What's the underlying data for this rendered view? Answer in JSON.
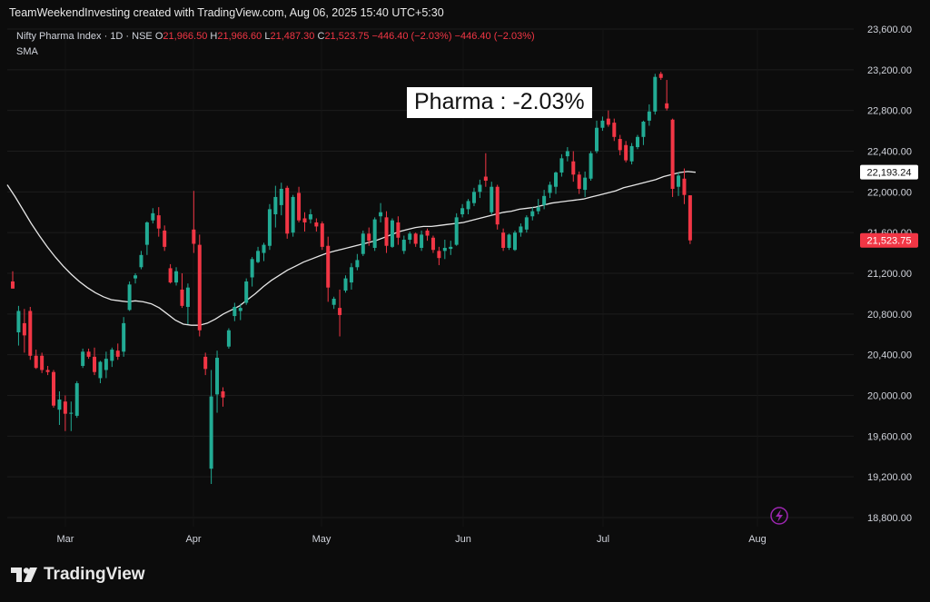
{
  "header": {
    "credit": "TeamWeekendInvesting created with TradingView.com, Aug 06, 2025 15:40 UTC+5:30"
  },
  "legend": {
    "symbol": "Nifty Pharma Index · 1D · NSE",
    "o_label": "O",
    "o_value": "21,966.50",
    "h_label": "H",
    "h_value": "21,966.60",
    "l_label": "L",
    "l_value": "21,487.30",
    "c_label": "C",
    "c_value": "21,523.75",
    "change": "−446.40 (−2.03%)",
    "change_repeat": "−446.40 (−2.03%)",
    "indicator": "SMA"
  },
  "annotation": "Pharma : -2.03%",
  "brand": {
    "name": "TradingView",
    "logo_icon": "tradingview-logo-icon"
  },
  "colors": {
    "background": "#0c0c0c",
    "up": "#22ab94",
    "down": "#f23645",
    "sma": "#e6e6e6",
    "badge_sma_bg": "#ffffff",
    "badge_price_bg": "#f23645",
    "lightning": "#9c27b0"
  },
  "chart_data": {
    "type": "candlestick",
    "x_ticks": [
      "Mar",
      "Apr",
      "May",
      "Jun",
      "Jul",
      "Aug"
    ],
    "y_ticks": [
      18800,
      19200,
      19600,
      20000,
      20400,
      20800,
      21200,
      21600,
      22000,
      22400,
      22800,
      23200,
      23600
    ],
    "y_tick_labels": [
      "18,800.00",
      "19,200.00",
      "19,600.00",
      "20,000.00",
      "20,400.00",
      "20,800.00",
      "21,200.00",
      "21,600.00",
      "22,000.00",
      "22,400.00",
      "22,800.00",
      "23,200.00",
      "23,600.00"
    ],
    "ylim": [
      18700,
      23700
    ],
    "price_badges": [
      {
        "label": "22,193.24",
        "value": 22193.24,
        "kind": "sma"
      },
      {
        "label": "21,523.75",
        "value": 21523.75,
        "kind": "last"
      }
    ],
    "candles": [
      {
        "o": 21120,
        "h": 21220,
        "l": 21050,
        "c": 21050
      },
      {
        "o": 20620,
        "h": 20880,
        "l": 20490,
        "c": 20830
      },
      {
        "o": 20710,
        "h": 20850,
        "l": 20420,
        "c": 20590
      },
      {
        "o": 20830,
        "h": 20870,
        "l": 20350,
        "c": 20390
      },
      {
        "o": 20390,
        "h": 20450,
        "l": 20260,
        "c": 20270
      },
      {
        "o": 20390,
        "h": 20420,
        "l": 20220,
        "c": 20250
      },
      {
        "o": 20250,
        "h": 20290,
        "l": 20200,
        "c": 20230
      },
      {
        "o": 20230,
        "h": 20250,
        "l": 19880,
        "c": 19900
      },
      {
        "o": 19860,
        "h": 20040,
        "l": 19710,
        "c": 19960
      },
      {
        "o": 19940,
        "h": 20000,
        "l": 19650,
        "c": 19820
      },
      {
        "o": 19820,
        "h": 19940,
        "l": 19650,
        "c": 19830
      },
      {
        "o": 19800,
        "h": 20140,
        "l": 19780,
        "c": 20120
      },
      {
        "o": 20290,
        "h": 20460,
        "l": 20270,
        "c": 20430
      },
      {
        "o": 20430,
        "h": 20460,
        "l": 20360,
        "c": 20380
      },
      {
        "o": 20380,
        "h": 20470,
        "l": 20200,
        "c": 20230
      },
      {
        "o": 20170,
        "h": 20340,
        "l": 20120,
        "c": 20330
      },
      {
        "o": 20250,
        "h": 20430,
        "l": 20170,
        "c": 20360
      },
      {
        "o": 20340,
        "h": 20470,
        "l": 20280,
        "c": 20450
      },
      {
        "o": 20440,
        "h": 20510,
        "l": 20350,
        "c": 20380
      },
      {
        "o": 20430,
        "h": 20770,
        "l": 20380,
        "c": 20710
      },
      {
        "o": 20840,
        "h": 21120,
        "l": 20830,
        "c": 21090
      },
      {
        "o": 21150,
        "h": 21200,
        "l": 21100,
        "c": 21180
      },
      {
        "o": 21260,
        "h": 21420,
        "l": 21240,
        "c": 21380
      },
      {
        "o": 21480,
        "h": 21710,
        "l": 21380,
        "c": 21700
      },
      {
        "o": 21720,
        "h": 21840,
        "l": 21690,
        "c": 21790
      },
      {
        "o": 21770,
        "h": 21850,
        "l": 21560,
        "c": 21640
      },
      {
        "o": 21620,
        "h": 21670,
        "l": 21420,
        "c": 21460
      },
      {
        "o": 21250,
        "h": 21290,
        "l": 21100,
        "c": 21110
      },
      {
        "o": 21110,
        "h": 21260,
        "l": 21080,
        "c": 21220
      },
      {
        "o": 21040,
        "h": 21200,
        "l": 20860,
        "c": 20880
      },
      {
        "o": 20870,
        "h": 21100,
        "l": 20700,
        "c": 21060
      },
      {
        "o": 21630,
        "h": 22010,
        "l": 21400,
        "c": 21490
      },
      {
        "o": 21480,
        "h": 21580,
        "l": 20580,
        "c": 20640
      },
      {
        "o": 20380,
        "h": 20420,
        "l": 20200,
        "c": 20260
      },
      {
        "o": 19280,
        "h": 20250,
        "l": 19130,
        "c": 19990
      },
      {
        "o": 20010,
        "h": 20440,
        "l": 19830,
        "c": 20370
      },
      {
        "o": 20040,
        "h": 20080,
        "l": 19890,
        "c": 19980
      },
      {
        "o": 20480,
        "h": 20660,
        "l": 20460,
        "c": 20640
      },
      {
        "o": 20780,
        "h": 20910,
        "l": 20730,
        "c": 20870
      },
      {
        "o": 20830,
        "h": 20900,
        "l": 20740,
        "c": 20860
      },
      {
        "o": 20910,
        "h": 21150,
        "l": 20890,
        "c": 21120
      },
      {
        "o": 21160,
        "h": 21360,
        "l": 21070,
        "c": 21340
      },
      {
        "o": 21310,
        "h": 21460,
        "l": 21300,
        "c": 21420
      },
      {
        "o": 21400,
        "h": 21500,
        "l": 21320,
        "c": 21480
      },
      {
        "o": 21470,
        "h": 21880,
        "l": 21430,
        "c": 21830
      },
      {
        "o": 21780,
        "h": 22060,
        "l": 21650,
        "c": 21950
      },
      {
        "o": 21870,
        "h": 22090,
        "l": 21770,
        "c": 22030
      },
      {
        "o": 22040,
        "h": 22060,
        "l": 21540,
        "c": 21590
      },
      {
        "o": 21600,
        "h": 21970,
        "l": 21560,
        "c": 21950
      },
      {
        "o": 21990,
        "h": 22050,
        "l": 21700,
        "c": 21720
      },
      {
        "o": 21740,
        "h": 21800,
        "l": 21610,
        "c": 21700
      },
      {
        "o": 21730,
        "h": 21830,
        "l": 21690,
        "c": 21780
      },
      {
        "o": 21700,
        "h": 21740,
        "l": 21610,
        "c": 21660
      },
      {
        "o": 21690,
        "h": 21710,
        "l": 21430,
        "c": 21460
      },
      {
        "o": 21470,
        "h": 21560,
        "l": 20920,
        "c": 21060
      },
      {
        "o": 20890,
        "h": 20970,
        "l": 20850,
        "c": 20950
      },
      {
        "o": 20860,
        "h": 21040,
        "l": 20580,
        "c": 20790
      },
      {
        "o": 21030,
        "h": 21180,
        "l": 21010,
        "c": 21150
      },
      {
        "o": 21110,
        "h": 21300,
        "l": 21040,
        "c": 21260
      },
      {
        "o": 21260,
        "h": 21390,
        "l": 21230,
        "c": 21330
      },
      {
        "o": 21390,
        "h": 21620,
        "l": 21370,
        "c": 21590
      },
      {
        "o": 21590,
        "h": 21650,
        "l": 21470,
        "c": 21520
      },
      {
        "o": 21450,
        "h": 21750,
        "l": 21420,
        "c": 21730
      },
      {
        "o": 21760,
        "h": 21890,
        "l": 21700,
        "c": 21800
      },
      {
        "o": 21750,
        "h": 21810,
        "l": 21400,
        "c": 21470
      },
      {
        "o": 21460,
        "h": 21740,
        "l": 21450,
        "c": 21720
      },
      {
        "o": 21700,
        "h": 21760,
        "l": 21480,
        "c": 21550
      },
      {
        "o": 21420,
        "h": 21570,
        "l": 21390,
        "c": 21530
      },
      {
        "o": 21530,
        "h": 21610,
        "l": 21490,
        "c": 21590
      },
      {
        "o": 21590,
        "h": 21600,
        "l": 21460,
        "c": 21490
      },
      {
        "o": 21450,
        "h": 21620,
        "l": 21420,
        "c": 21580
      },
      {
        "o": 21620,
        "h": 21640,
        "l": 21520,
        "c": 21570
      },
      {
        "o": 21550,
        "h": 21570,
        "l": 21400,
        "c": 21430
      },
      {
        "o": 21420,
        "h": 21460,
        "l": 21280,
        "c": 21350
      },
      {
        "o": 21420,
        "h": 21530,
        "l": 21340,
        "c": 21450
      },
      {
        "o": 21440,
        "h": 21520,
        "l": 21380,
        "c": 21460
      },
      {
        "o": 21480,
        "h": 21790,
        "l": 21470,
        "c": 21750
      },
      {
        "o": 21780,
        "h": 21880,
        "l": 21750,
        "c": 21840
      },
      {
        "o": 21830,
        "h": 21930,
        "l": 21780,
        "c": 21910
      },
      {
        "o": 21890,
        "h": 22040,
        "l": 21860,
        "c": 22000
      },
      {
        "o": 22000,
        "h": 22120,
        "l": 21940,
        "c": 22070
      },
      {
        "o": 22150,
        "h": 22380,
        "l": 22050,
        "c": 22110
      },
      {
        "o": 21800,
        "h": 22100,
        "l": 21780,
        "c": 22050
      },
      {
        "o": 22050,
        "h": 22070,
        "l": 21630,
        "c": 21680
      },
      {
        "o": 21600,
        "h": 21640,
        "l": 21420,
        "c": 21450
      },
      {
        "o": 21450,
        "h": 21590,
        "l": 21430,
        "c": 21580
      },
      {
        "o": 21430,
        "h": 21620,
        "l": 21420,
        "c": 21600
      },
      {
        "o": 21600,
        "h": 21690,
        "l": 21560,
        "c": 21660
      },
      {
        "o": 21630,
        "h": 21770,
        "l": 21600,
        "c": 21750
      },
      {
        "o": 21760,
        "h": 21850,
        "l": 21720,
        "c": 21810
      },
      {
        "o": 21810,
        "h": 21930,
        "l": 21780,
        "c": 21850
      },
      {
        "o": 21870,
        "h": 22020,
        "l": 21830,
        "c": 21960
      },
      {
        "o": 21990,
        "h": 22100,
        "l": 21940,
        "c": 22070
      },
      {
        "o": 22050,
        "h": 22200,
        "l": 21980,
        "c": 22190
      },
      {
        "o": 22190,
        "h": 22370,
        "l": 22150,
        "c": 22330
      },
      {
        "o": 22350,
        "h": 22440,
        "l": 22300,
        "c": 22400
      },
      {
        "o": 22300,
        "h": 22400,
        "l": 22100,
        "c": 22170
      },
      {
        "o": 22170,
        "h": 22200,
        "l": 21980,
        "c": 22030
      },
      {
        "o": 22020,
        "h": 22200,
        "l": 21950,
        "c": 22140
      },
      {
        "o": 22130,
        "h": 22400,
        "l": 22110,
        "c": 22380
      },
      {
        "o": 22400,
        "h": 22700,
        "l": 22380,
        "c": 22630
      },
      {
        "o": 22630,
        "h": 22740,
        "l": 22600,
        "c": 22700
      },
      {
        "o": 22720,
        "h": 22800,
        "l": 22640,
        "c": 22660
      },
      {
        "o": 22680,
        "h": 22720,
        "l": 22500,
        "c": 22540
      },
      {
        "o": 22520,
        "h": 22560,
        "l": 22360,
        "c": 22410
      },
      {
        "o": 22460,
        "h": 22500,
        "l": 22290,
        "c": 22310
      },
      {
        "o": 22300,
        "h": 22480,
        "l": 22270,
        "c": 22450
      },
      {
        "o": 22440,
        "h": 22560,
        "l": 22420,
        "c": 22540
      },
      {
        "o": 22540,
        "h": 22700,
        "l": 22460,
        "c": 22690
      },
      {
        "o": 22700,
        "h": 22860,
        "l": 22650,
        "c": 22790
      },
      {
        "o": 22790,
        "h": 23160,
        "l": 22760,
        "c": 23130
      },
      {
        "o": 23160,
        "h": 23180,
        "l": 23100,
        "c": 23120
      },
      {
        "o": 22870,
        "h": 23100,
        "l": 22800,
        "c": 22820
      },
      {
        "o": 22710,
        "h": 22720,
        "l": 21950,
        "c": 22030
      },
      {
        "o": 22050,
        "h": 22190,
        "l": 21960,
        "c": 22160
      },
      {
        "o": 22130,
        "h": 22230,
        "l": 21880,
        "c": 21970
      },
      {
        "o": 21966.5,
        "h": 21966.6,
        "l": 21487.3,
        "c": 21523.75
      }
    ],
    "sma_series": [
      22070,
      21950,
      21820,
      21690,
      21570,
      21460,
      21360,
      21270,
      21190,
      21120,
      21060,
      21010,
      20970,
      20940,
      20930,
      20920,
      20930,
      20920,
      20900,
      20860,
      20800,
      20740,
      20700,
      20690,
      20690,
      20710,
      20750,
      20800,
      20840,
      20880,
      20940,
      21000,
      21070,
      21130,
      21180,
      21230,
      21270,
      21310,
      21340,
      21370,
      21400,
      21420,
      21440,
      21460,
      21480,
      21500,
      21520,
      21550,
      21580,
      21610,
      21630,
      21650,
      21660,
      21660,
      21670,
      21680,
      21690,
      21700,
      21720,
      21740,
      21760,
      21780,
      21800,
      21810,
      21830,
      21840,
      21850,
      21870,
      21890,
      21900,
      21910,
      21920,
      21930,
      21950,
      21970,
      21990,
      22010,
      22040,
      22060,
      22080,
      22100,
      22120,
      22150,
      22170,
      22190,
      22200,
      22193
    ]
  }
}
